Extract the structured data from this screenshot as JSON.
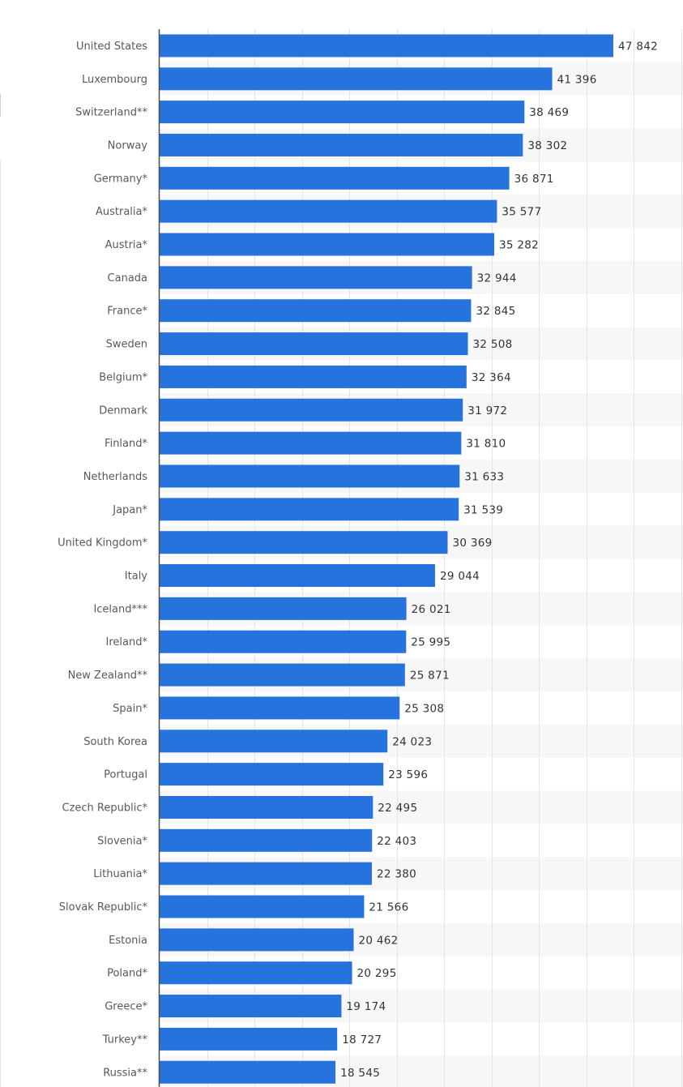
{
  "colors": {
    "bar": "#2673dd",
    "band": "#f7f7f7",
    "grid": "#e4e4e4",
    "axis": "#4d4d4d",
    "label": "#595959",
    "value": "#333333"
  },
  "chart_data": {
    "type": "bar",
    "orientation": "horizontal",
    "title": "",
    "xlabel": "",
    "ylabel": "",
    "xlim": [
      0,
      55000
    ],
    "grid_step": 5000,
    "grid": true,
    "categories": [
      "United States",
      "Luxembourg",
      "Switzerland**",
      "Norway",
      "Germany*",
      "Australia*",
      "Austria*",
      "Canada",
      "France*",
      "Sweden",
      "Belgium*",
      "Denmark",
      "Finland*",
      "Netherlands",
      "Japan*",
      "United Kingdom*",
      "Italy",
      "Iceland***",
      "Ireland*",
      "New Zealand**",
      "Spain*",
      "South Korea",
      "Portugal",
      "Czech Republic*",
      "Slovenia*",
      "Lithuania*",
      "Slovak Republic*",
      "Estonia",
      "Poland*",
      "Greece*",
      "Turkey**",
      "Russia**"
    ],
    "values": [
      47842,
      41396,
      38469,
      38302,
      36871,
      35577,
      35282,
      32944,
      32845,
      32508,
      32364,
      31972,
      31810,
      31633,
      31539,
      30369,
      29044,
      26021,
      25995,
      25871,
      25308,
      24023,
      23596,
      22495,
      22403,
      22380,
      21566,
      20462,
      20295,
      19174,
      18727,
      18545
    ],
    "value_labels": [
      "47 842",
      "41 396",
      "38 469",
      "38 302",
      "36 871",
      "35 577",
      "35 282",
      "32 944",
      "32 845",
      "32 508",
      "32 364",
      "31 972",
      "31 810",
      "31 633",
      "31 539",
      "30 369",
      "29 044",
      "26 021",
      "25 995",
      "25 871",
      "25 308",
      "24 023",
      "23 596",
      "22 495",
      "22 403",
      "22 380",
      "21 566",
      "20 462",
      "20 295",
      "19 174",
      "18 727",
      "18 545"
    ]
  }
}
